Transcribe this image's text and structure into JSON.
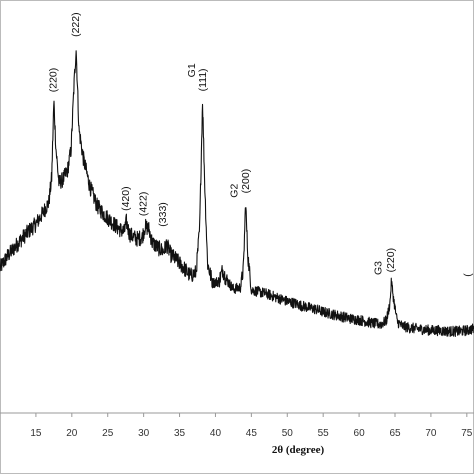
{
  "chart_data": {
    "type": "line",
    "title": "",
    "xlabel": "2θ (degree)",
    "ylabel": "",
    "xlim": [
      10,
      76
    ],
    "ylim": [
      0,
      470
    ],
    "x_ticks": [
      15,
      20,
      25,
      30,
      35,
      40,
      45,
      50,
      55,
      60,
      65,
      70,
      75
    ],
    "grid": false,
    "colors": {
      "line": "#111111",
      "axis": "#999999",
      "frame": "#bbbbbb"
    },
    "series": [
      {
        "values": [
          [
            10.0,
            165
          ],
          [
            11.0,
            178
          ],
          [
            12.0,
            188
          ],
          [
            13.0,
            198
          ],
          [
            14.0,
            207
          ],
          [
            15.0,
            215
          ],
          [
            16.0,
            228
          ],
          [
            16.8,
            240
          ],
          [
            17.2,
            268
          ],
          [
            17.5,
            355
          ],
          [
            17.8,
            300
          ],
          [
            18.2,
            262
          ],
          [
            18.8,
            266
          ],
          [
            19.4,
            276
          ],
          [
            19.9,
            300
          ],
          [
            20.3,
            372
          ],
          [
            20.6,
            415
          ],
          [
            21.0,
            322
          ],
          [
            21.6,
            290
          ],
          [
            22.5,
            258
          ],
          [
            23.5,
            236
          ],
          [
            24.5,
            226
          ],
          [
            25.5,
            218
          ],
          [
            26.5,
            210
          ],
          [
            27.3,
            206
          ],
          [
            27.6,
            218
          ],
          [
            28.0,
            204
          ],
          [
            29.0,
            198
          ],
          [
            29.8,
            200
          ],
          [
            30.2,
            212
          ],
          [
            30.7,
            210
          ],
          [
            31.2,
            194
          ],
          [
            32.0,
            188
          ],
          [
            32.8,
            184
          ],
          [
            33.2,
            192
          ],
          [
            33.8,
            180
          ],
          [
            34.5,
            175
          ],
          [
            35.5,
            166
          ],
          [
            36.5,
            156
          ],
          [
            37.3,
            160
          ],
          [
            37.8,
            210
          ],
          [
            38.2,
            356
          ],
          [
            38.5,
            262
          ],
          [
            38.9,
            170
          ],
          [
            39.6,
            148
          ],
          [
            40.5,
            150
          ],
          [
            41.0,
            163
          ],
          [
            41.5,
            152
          ],
          [
            42.5,
            141
          ],
          [
            43.5,
            143
          ],
          [
            43.9,
            165
          ],
          [
            44.2,
            240
          ],
          [
            44.5,
            180
          ],
          [
            45.0,
            140
          ],
          [
            46.0,
            138
          ],
          [
            47.0,
            136
          ],
          [
            48.0,
            133
          ],
          [
            49.0,
            130
          ],
          [
            50.0,
            127
          ],
          [
            51.0,
            125
          ],
          [
            52.0,
            122
          ],
          [
            53.0,
            120
          ],
          [
            54.0,
            118
          ],
          [
            55.0,
            115
          ],
          [
            56.0,
            113
          ],
          [
            57.0,
            111
          ],
          [
            58.0,
            109
          ],
          [
            59.0,
            107
          ],
          [
            60.0,
            106
          ],
          [
            61.0,
            104
          ],
          [
            62.0,
            102
          ],
          [
            63.0,
            101
          ],
          [
            63.8,
            105
          ],
          [
            64.3,
            125
          ],
          [
            64.5,
            150
          ],
          [
            64.8,
            130
          ],
          [
            65.3,
            104
          ],
          [
            66.0,
            99
          ],
          [
            67.0,
            97
          ],
          [
            68.0,
            96
          ],
          [
            69.0,
            95
          ],
          [
            70.0,
            94
          ],
          [
            71.0,
            94
          ],
          [
            72.0,
            93
          ],
          [
            73.0,
            93
          ],
          [
            74.0,
            93
          ],
          [
            75.0,
            94
          ],
          [
            76.0,
            96
          ]
        ]
      }
    ],
    "annotations": [
      {
        "text": "(220)",
        "x": 17.5,
        "y": 365
      },
      {
        "text": "(222)",
        "x": 20.6,
        "y": 428
      },
      {
        "text": "(420)",
        "x": 27.6,
        "y": 230
      },
      {
        "text": "(422)",
        "x": 30.0,
        "y": 224
      },
      {
        "text": "(333)",
        "x": 32.7,
        "y": 212
      },
      {
        "text": "G1",
        "x": 36.8,
        "y": 382
      },
      {
        "text": "(111)",
        "x": 38.3,
        "y": 366
      },
      {
        "text": "G2",
        "x": 42.7,
        "y": 245
      },
      {
        "text": "(200)",
        "x": 44.3,
        "y": 250
      },
      {
        "text": "G3",
        "x": 62.7,
        "y": 157
      },
      {
        "text": "(220)",
        "x": 64.5,
        "y": 160
      },
      {
        "text": "(",
        "x": 75.2,
        "y": 155
      }
    ]
  }
}
